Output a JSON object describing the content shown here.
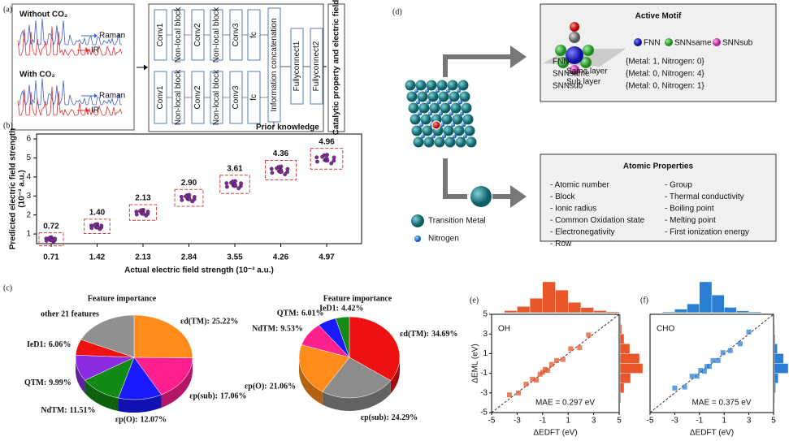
{
  "panels": {
    "a": {
      "label": "(a)",
      "spectra": [
        {
          "title": "Without CO₂",
          "raman": "Raman",
          "ir": "IR"
        },
        {
          "title": "With CO₂",
          "raman": "Raman",
          "ir": "IR"
        }
      ],
      "network": {
        "rows": [
          [
            "Conv1",
            "Non-local block",
            "Conv2",
            "Non-local block",
            "Conv3",
            "fc"
          ],
          [
            "Conv1",
            "Non-local block",
            "Conv2",
            "Non-local block",
            "Conv3",
            "fc"
          ]
        ],
        "concat": "Information concatenation",
        "fc1": "Fullyconnect1",
        "fc2": "Fullyconnect2",
        "prior": "Prior knowledge"
      },
      "output": "Catalytic property and electric field"
    },
    "b": {
      "label": "(b)"
    },
    "c": {
      "label": "(c)"
    },
    "d": {
      "label": "(d)",
      "motif": {
        "title": "Active Motif",
        "same": "Same layer",
        "sub": "Sub layer",
        "legend": [
          "FNN",
          "SNNsame",
          "SNNsub"
        ],
        "rows": [
          [
            "FNN",
            "{Metal: 1, Nitrogen: 0}"
          ],
          [
            "SNNsame",
            "{Metal: 0, Nitrogen: 4}"
          ],
          [
            "SNNsub",
            "{Metal: 0, Nitrogen: 1}"
          ]
        ]
      },
      "properties": {
        "title": "Atomic Properties",
        "left": [
          "- Atomic number",
          "- Block",
          "- Ionic radius",
          "- Common Oxidation state",
          "- Electronegativity",
          "- Row"
        ],
        "right": [
          "- Group",
          "- Thermal conductivity",
          "- Boiling point",
          "- Melting point",
          "- First ionization energy"
        ]
      },
      "legend": [
        "Transition Metal",
        "Nitrogen"
      ]
    },
    "e": {
      "label": "(e)"
    },
    "f": {
      "label": "(f)"
    }
  },
  "chart_data": [
    {
      "type": "scatter",
      "xlabel": "Actual electric field strength (10⁻³ a.u.)",
      "ylabel": [
        "Predicted electric field strength",
        "(10⁻³ a.u.)"
      ],
      "x": [
        0.71,
        1.42,
        2.13,
        2.84,
        3.55,
        4.26,
        4.97
      ],
      "values": [
        0.72,
        1.4,
        2.13,
        2.9,
        3.61,
        4.36,
        4.96
      ],
      "value_labels": [
        "0.72",
        "1.40",
        "2.13",
        "2.90",
        "3.61",
        "4.36",
        "4.96"
      ],
      "color": "#7b2d8e",
      "xlim": [
        0.484,
        5.51
      ],
      "ylim": [
        0.49,
        6.26
      ],
      "xticks": [
        0.71,
        1.42,
        2.13,
        2.84,
        3.55,
        4.26,
        4.97
      ],
      "yticks": [
        1,
        2,
        3,
        4,
        5,
        6
      ]
    },
    {
      "type": "pie",
      "title": "Feature importance",
      "categories": [
        "εd(TM):",
        "εp(sub):",
        "εp(O):",
        "NdTM:",
        "QTM:",
        "IeD1:",
        "other 21 features"
      ],
      "values": [
        25.22,
        17.06,
        12.07,
        11.51,
        9.99,
        6.06,
        18.09
      ],
      "value_labels": [
        "25.22%",
        "17.06%",
        "12.07%",
        "11.51%",
        "9.99%",
        "6.06%",
        null
      ],
      "colors": [
        "#ff8c1a",
        "#ff1f8f",
        "#1a1aff",
        "#138a13",
        "#8a2be2",
        "#ee1111",
        "#909090"
      ]
    },
    {
      "type": "pie",
      "title": "Feature importance",
      "categories": [
        "εd(TM):",
        "εp(sub):",
        "εp(O):",
        "NdTM:",
        "QTM:",
        "IeD1:"
      ],
      "values": [
        34.69,
        24.29,
        21.06,
        9.53,
        6.01,
        4.42
      ],
      "value_labels": [
        "34.69%",
        "24.29%",
        "21.06%",
        "9.53%",
        "6.01%",
        "4.42%"
      ],
      "colors": [
        "#ee1111",
        "#8c8c8c",
        "#ff8c1a",
        "#ff1f8f",
        "#1a1aff",
        "#138a13"
      ]
    },
    {
      "type": "hexbin",
      "title": "OH",
      "annotation": "MAE = 0.297 eV",
      "xlabel": "ΔEDFT (eV)",
      "ylabel": "ΔEML (eV)",
      "color": "#e8562a",
      "x": [
        -3.6,
        -2.9,
        -2.3,
        -1.8,
        -1.5,
        -1.2,
        -1.0,
        -0.8,
        -0.6,
        -0.3,
        0.1,
        0.6,
        1.2,
        1.9,
        2.6
      ],
      "values": [
        -3.2,
        -3.0,
        -2.1,
        -1.6,
        -1.7,
        -1.1,
        -0.9,
        -0.6,
        -0.7,
        -0.1,
        0.3,
        0.4,
        1.5,
        1.6,
        2.9
      ],
      "xlim": [
        -5,
        5
      ],
      "ylim": [
        -5,
        5
      ],
      "xticks": [
        -5,
        -3,
        -1,
        1,
        3,
        5
      ],
      "yticks": [
        -5,
        -3,
        -1,
        1,
        3,
        5
      ],
      "x_hist": {
        "bins": [
          -5,
          -4,
          -3,
          -2,
          -1,
          0,
          1,
          2,
          3,
          4,
          5
        ],
        "counts": [
          0,
          2,
          6,
          14,
          30,
          22,
          10,
          5,
          2,
          1
        ]
      },
      "y_hist": {
        "bins": [
          -5,
          -4,
          -3,
          -2,
          -1,
          0,
          1,
          2,
          3,
          4,
          5
        ],
        "counts": [
          0,
          1,
          5,
          13,
          28,
          24,
          12,
          5,
          2,
          1
        ]
      }
    },
    {
      "type": "hexbin",
      "title": "CHO",
      "annotation": "MAE = 0.375 eV",
      "xlabel": "ΔEDFT (eV)",
      "color": "#2a7fd4",
      "x": [
        -3.0,
        -2.2,
        -1.6,
        -1.2,
        -0.9,
        -0.6,
        -0.4,
        -0.2,
        0.1,
        0.5,
        0.9,
        1.5,
        2.3,
        3.0
      ],
      "values": [
        -2.5,
        -2.4,
        -1.3,
        -1.3,
        -0.7,
        -0.8,
        -0.3,
        -0.3,
        0.3,
        0.3,
        1.1,
        1.3,
        2.0,
        3.2
      ],
      "xlim": [
        -5,
        5
      ],
      "ylim": [
        -5,
        5
      ],
      "xticks": [
        -5,
        -3,
        -1,
        1,
        3,
        5
      ],
      "x_hist": {
        "bins": [
          -5,
          -4,
          -3,
          -2,
          -1,
          0,
          1,
          2,
          3,
          4,
          5
        ],
        "counts": [
          0,
          1,
          4,
          10,
          35,
          20,
          6,
          2,
          1,
          0
        ]
      },
      "y_hist": {
        "bins": [
          -5,
          -4,
          -3,
          -2,
          -1,
          0,
          1,
          2,
          3,
          4,
          5
        ],
        "counts": [
          0,
          1,
          3,
          9,
          33,
          22,
          7,
          2,
          1,
          0
        ]
      }
    }
  ]
}
